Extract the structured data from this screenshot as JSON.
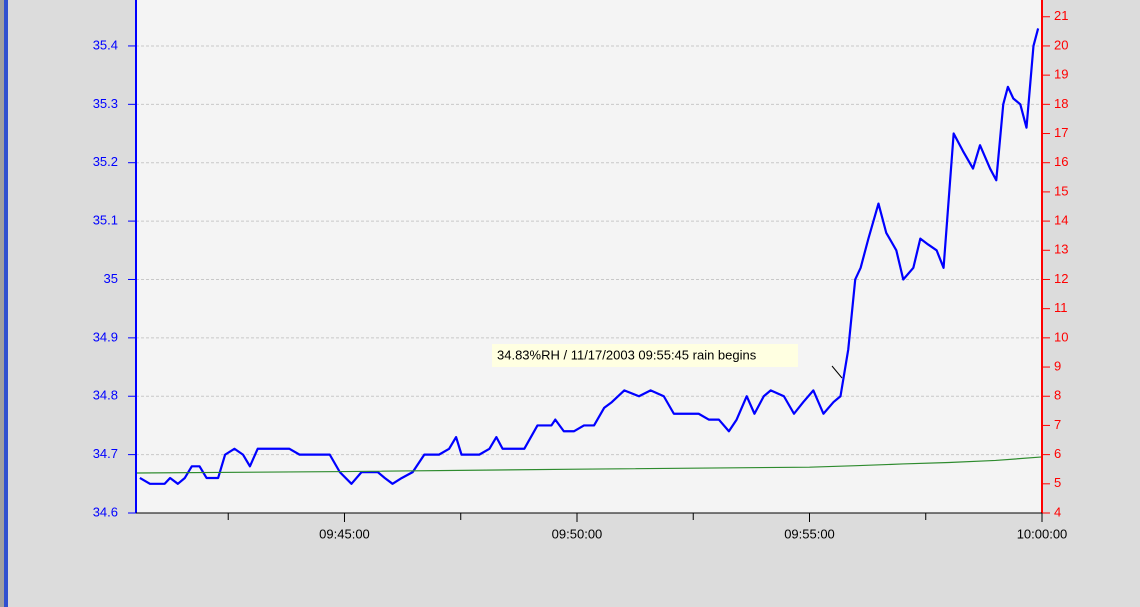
{
  "chart_data": {
    "type": "line",
    "xlim": [
      "09:40:31",
      "10:00:00"
    ],
    "xticks": [
      "09:45:00",
      "09:50:00",
      "09:55:00",
      "10:00:00"
    ],
    "xminor_ticks": [
      "09:42:30",
      "09:47:30",
      "09:52:30",
      "09:57:30"
    ],
    "ylim": [
      34.6,
      35.465
    ],
    "yticks": [
      34.6,
      34.7,
      34.8,
      34.9,
      35,
      35.1,
      35.2,
      35.3,
      35.4
    ],
    "y2lim": [
      4,
      21.3
    ],
    "y2ticks": [
      4,
      5,
      6,
      7,
      8,
      9,
      10,
      11,
      12,
      13,
      14,
      15,
      16,
      17,
      18,
      19,
      20,
      21
    ],
    "grid": true,
    "y_color": "#0000ff",
    "y2_color": "#ff0000",
    "x": [
      "09:40:36",
      "09:40:49",
      "09:41:08",
      "09:41:15",
      "09:41:25",
      "09:41:34",
      "09:41:43",
      "09:41:53",
      "09:42:02",
      "09:42:17",
      "09:42:26",
      "09:42:38",
      "09:42:49",
      "09:42:58",
      "09:43:08",
      "09:43:49",
      "09:44:02",
      "09:44:41",
      "09:44:54",
      "09:45:09",
      "09:45:22",
      "09:45:43",
      "09:45:52",
      "09:46:02",
      "09:46:14",
      "09:46:28",
      "09:46:43",
      "09:47:02",
      "09:47:15",
      "09:47:24",
      "09:47:31",
      "09:47:54",
      "09:48:07",
      "09:48:16",
      "09:48:24",
      "09:48:52",
      "09:49:09",
      "09:49:27",
      "09:49:32",
      "09:49:43",
      "09:49:56",
      "09:50:09",
      "09:50:22",
      "09:50:35",
      "09:50:45",
      "09:51:01",
      "09:51:20",
      "09:51:35",
      "09:51:52",
      "09:52:05",
      "09:52:37",
      "09:52:50",
      "09:53:03",
      "09:53:16",
      "09:53:26",
      "09:53:39",
      "09:53:49",
      "09:54:01",
      "09:54:10",
      "09:54:27",
      "09:54:40",
      "09:54:52",
      "09:55:05",
      "09:55:18",
      "09:55:31",
      "09:55:40",
      "09:55:50",
      "09:55:59",
      "09:56:06",
      "09:56:16",
      "09:56:29",
      "09:56:39",
      "09:56:52",
      "09:57:01",
      "09:57:14",
      "09:57:23",
      "09:57:33",
      "09:57:44",
      "09:57:53",
      "09:58:06",
      "09:58:18",
      "09:58:31",
      "09:58:40",
      "09:58:53",
      "09:59:01",
      "09:59:10",
      "09:59:16",
      "09:59:23",
      "09:59:32",
      "09:59:40",
      "09:59:49",
      "09:59:55"
    ],
    "series": [
      {
        "color": "#0000ff",
        "values": [
          34.66,
          34.65,
          34.65,
          34.66,
          34.65,
          34.66,
          34.68,
          34.68,
          34.66,
          34.66,
          34.7,
          34.71,
          34.7,
          34.68,
          34.71,
          34.71,
          34.7,
          34.7,
          34.67,
          34.65,
          34.67,
          34.67,
          34.66,
          34.65,
          34.66,
          34.67,
          34.7,
          34.7,
          34.71,
          34.73,
          34.7,
          34.7,
          34.71,
          34.73,
          34.71,
          34.71,
          34.75,
          34.75,
          34.76,
          34.74,
          34.74,
          34.75,
          34.75,
          34.78,
          34.79,
          34.81,
          34.8,
          34.81,
          34.8,
          34.77,
          34.77,
          34.76,
          34.76,
          34.74,
          34.76,
          34.8,
          34.77,
          34.8,
          34.81,
          34.8,
          34.77,
          34.79,
          34.81,
          34.77,
          34.79,
          34.8,
          34.88,
          35.0,
          35.02,
          35.07,
          35.13,
          35.08,
          35.05,
          35.0,
          35.02,
          35.07,
          35.06,
          35.05,
          35.02,
          35.25,
          35.22,
          35.19,
          35.23,
          35.19,
          35.17,
          35.3,
          35.33,
          35.31,
          35.3,
          35.26,
          35.4,
          35.43
        ]
      },
      {
        "color": "#2e8b2e",
        "axis": "y2",
        "x": [
          "09:40:31",
          "09:45:00",
          "09:50:00",
          "09:55:00",
          "09:56:00",
          "09:57:00",
          "09:58:00",
          "09:59:00",
          "10:00:00"
        ],
        "values": [
          5.37,
          5.42,
          5.5,
          5.57,
          5.62,
          5.68,
          5.73,
          5.8,
          5.92
        ]
      }
    ],
    "annotation": {
      "text": "34.83%RH / 11/17/2003 09:55:45 rain begins"
    }
  }
}
